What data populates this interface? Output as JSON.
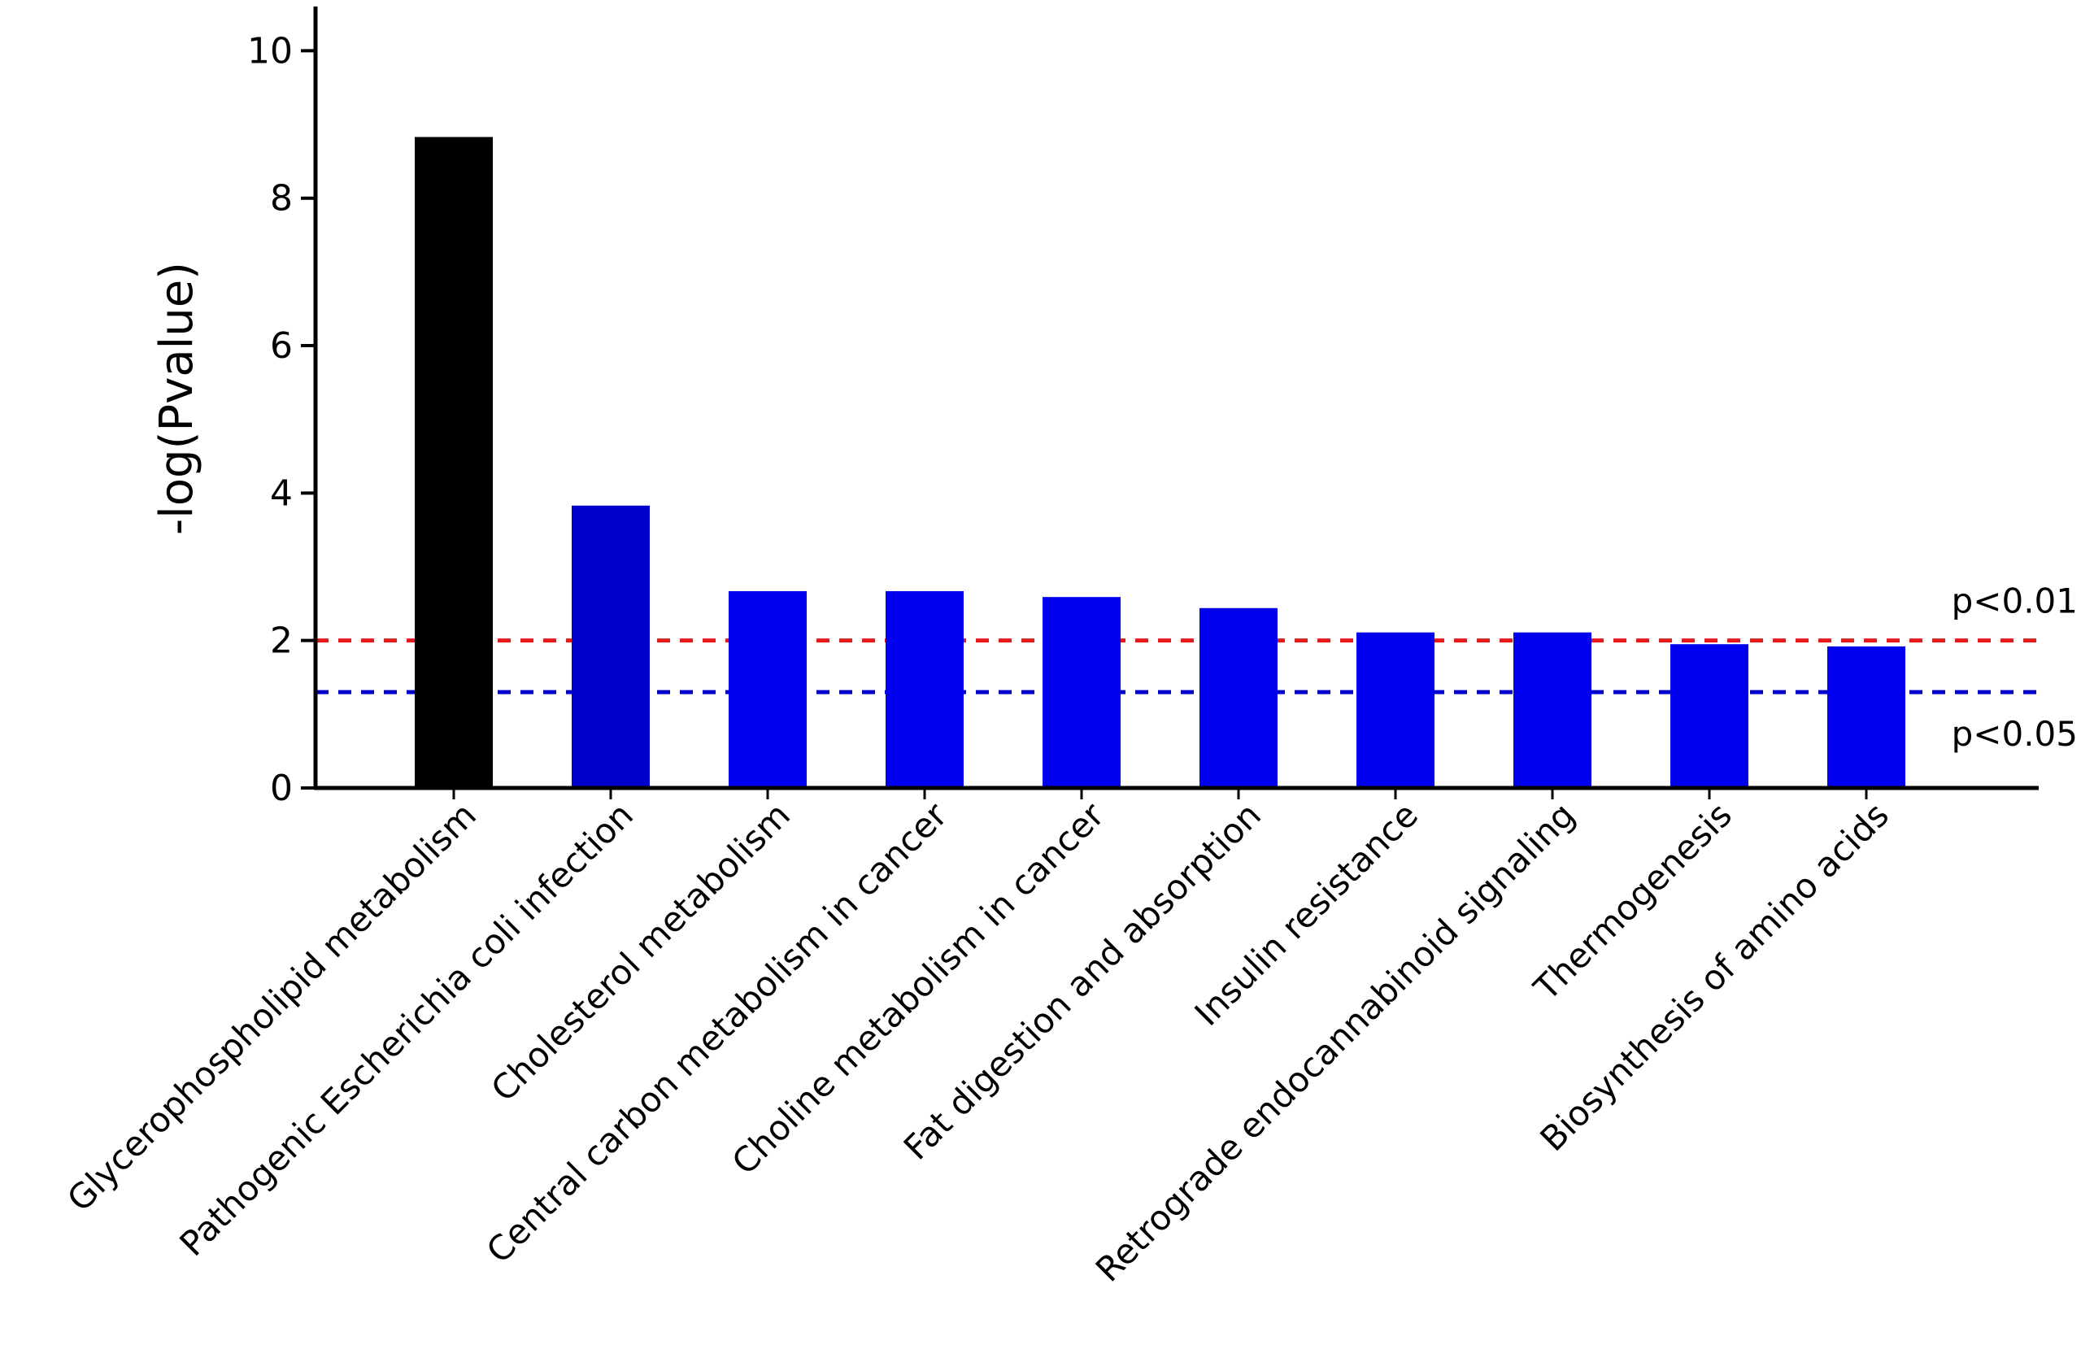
{
  "chart_data": {
    "type": "bar",
    "ylabel": "-log(Pvalue)",
    "xlabel": "",
    "ylim": [
      0,
      10.6
    ],
    "yticks": [
      0,
      2,
      4,
      6,
      8,
      10
    ],
    "categories": [
      "Glycerophospholipid metabolism",
      "Pathogenic Escherichia coli infection",
      "Cholesterol metabolism",
      "Central carbon metabolism in cancer",
      "Choline metabolism in cancer",
      "Fat digestion and absorption",
      "Insulin resistance",
      "Retrograde endocannabinoid signaling",
      "Thermogenesis",
      "Biosynthesis of amino acids"
    ],
    "values": [
      8.83,
      3.83,
      2.67,
      2.67,
      2.59,
      2.44,
      2.11,
      2.11,
      1.95,
      1.92
    ],
    "bar_colors": [
      "#000000",
      "#0000cc",
      "#0000ee",
      "#0000ee",
      "#0000ee",
      "#0000ee",
      "#0000ee",
      "#0000ee",
      "#0000ee",
      "#0000ee"
    ],
    "thresholds": [
      {
        "label": "p<0.01",
        "value": 2.0,
        "color": "#e41a1c"
      },
      {
        "label": "p<0.05",
        "value": 1.3,
        "color": "#0000cc"
      }
    ],
    "grid": false,
    "legend": "none"
  }
}
